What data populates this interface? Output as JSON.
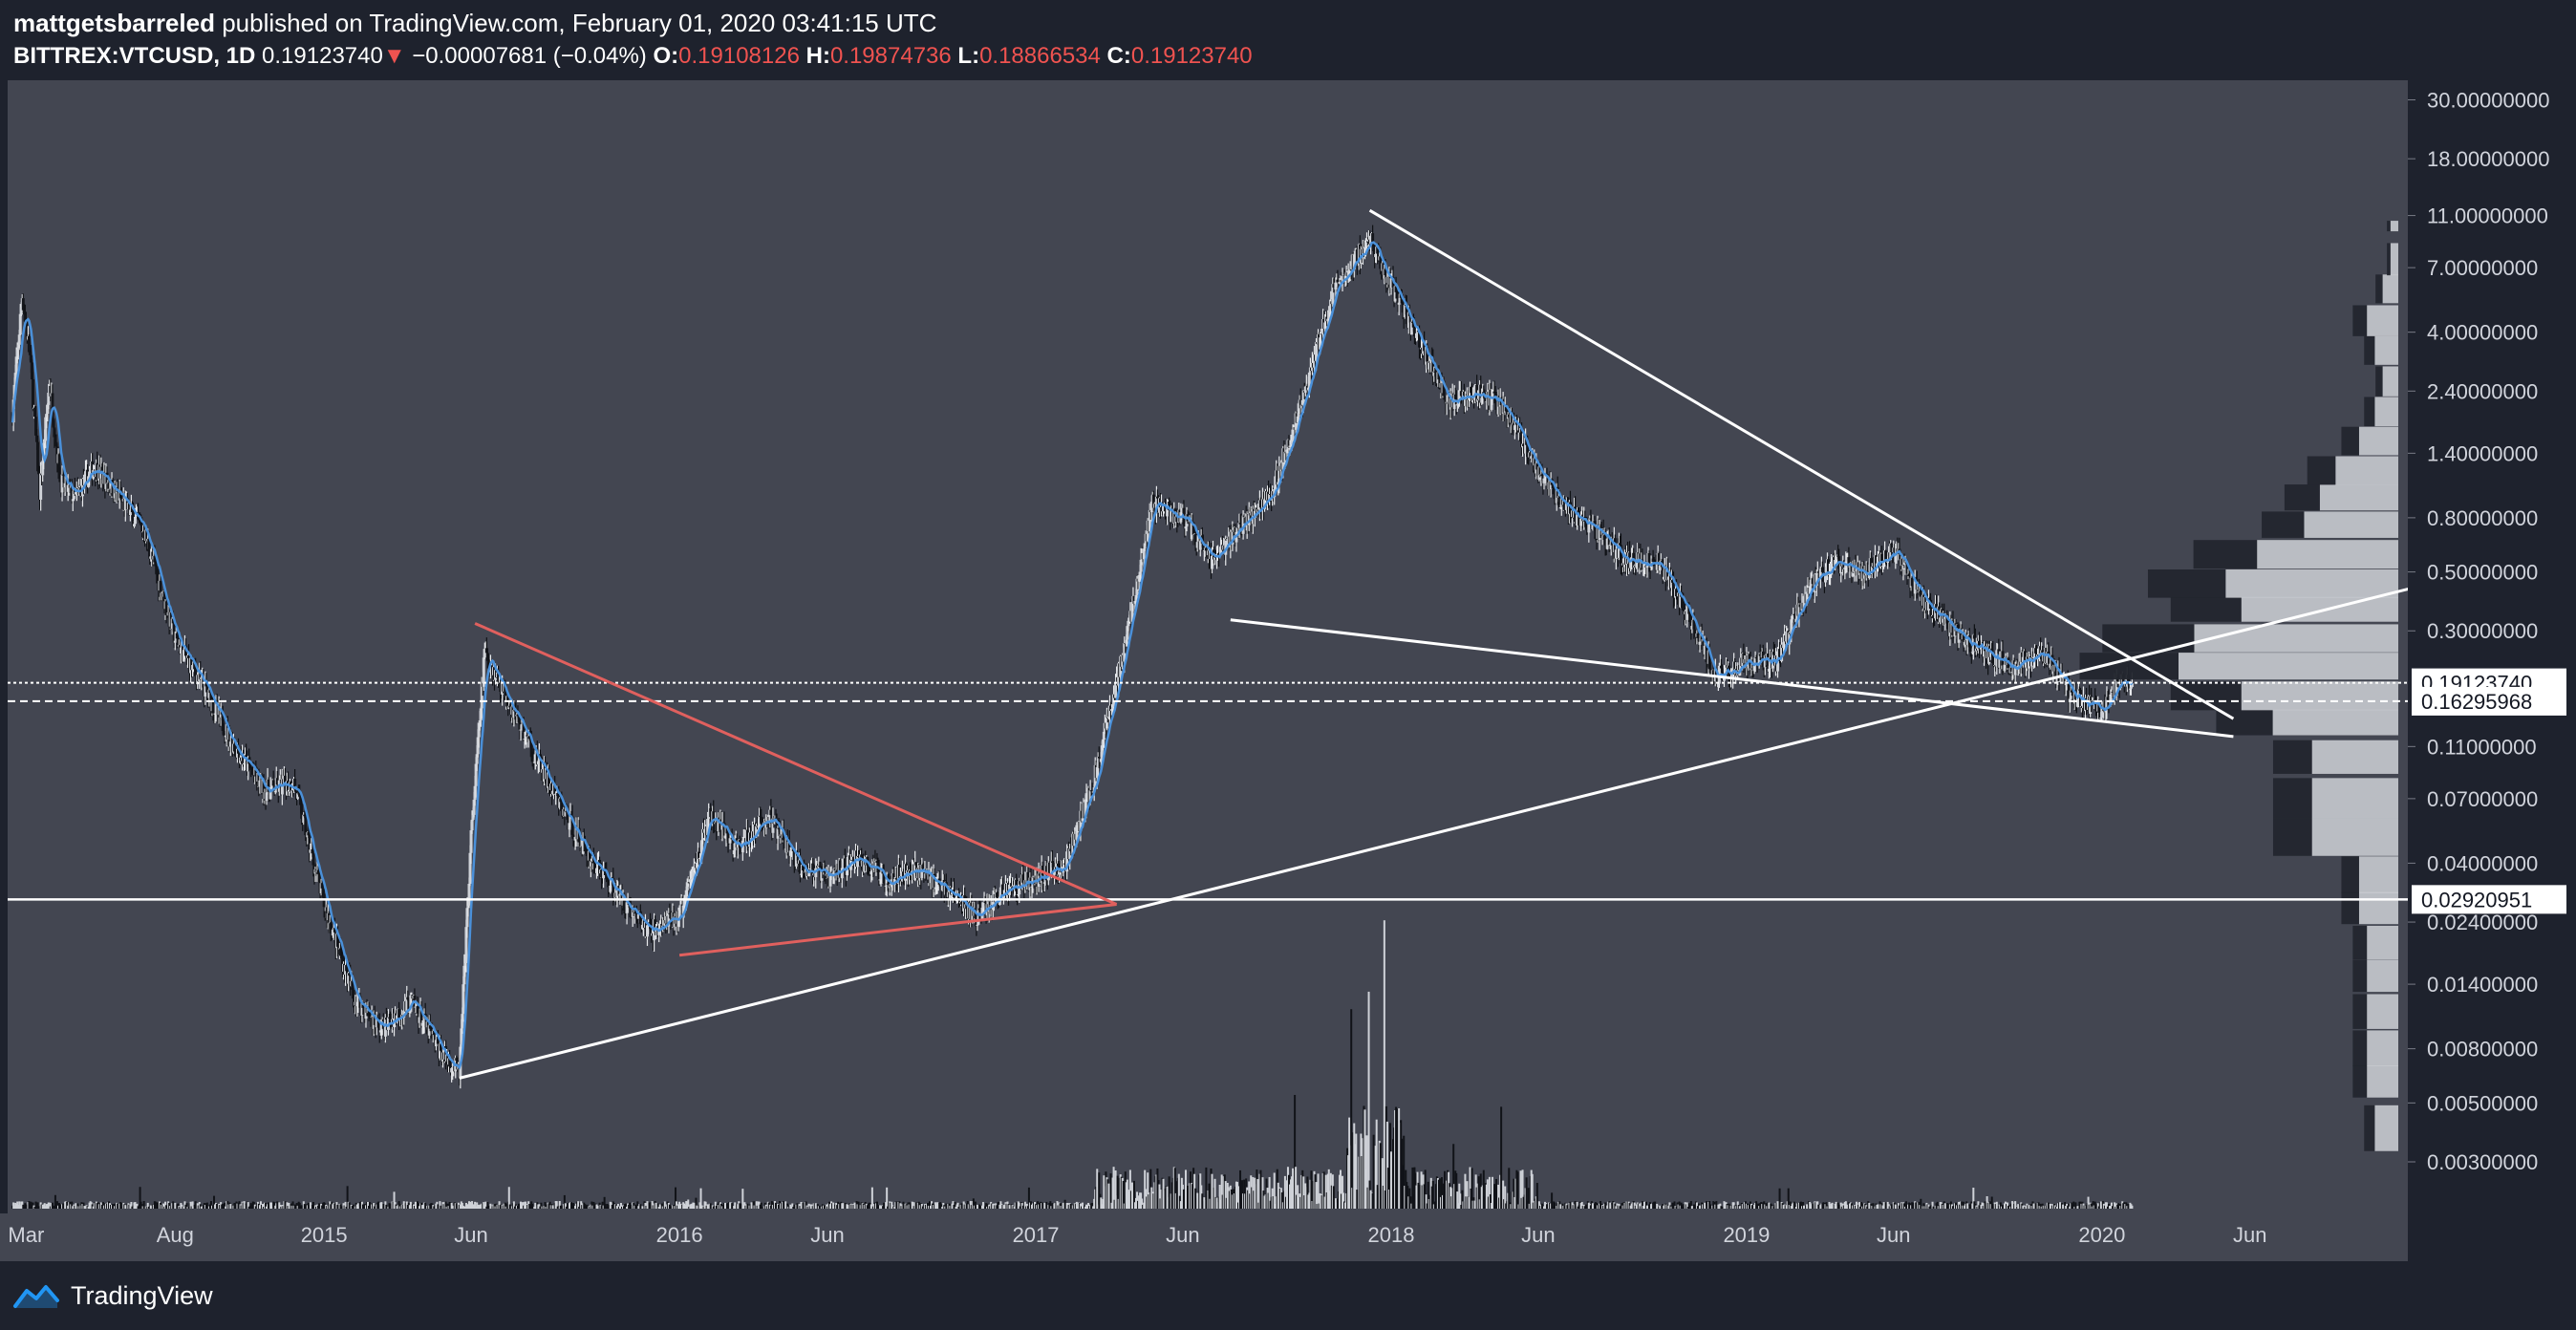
{
  "header": {
    "username": "mattgetsbarreled",
    "published_text": "published on TradingView.com, February 01, 2020 03:41:15 UTC",
    "symbol": "BITTREX:VTCUSD, 1D",
    "last": "0.19123740",
    "change": "−0.00007681 (−0.04%)",
    "o_label": "O:",
    "o_value": "0.19108126",
    "h_label": "H:",
    "h_value": "0.19874736",
    "l_label": "L:",
    "l_value": "0.18866534",
    "c_label": "C:",
    "c_value": "0.19123740",
    "down_color": "#ef5350"
  },
  "footer": {
    "brand": "TradingView",
    "logo_icon": "tradingview-logo-icon"
  },
  "colors": {
    "background": "#1e222d",
    "plot_background": "#434651",
    "trendline_white": "#ffffff",
    "trendline_red": "#e0605e",
    "moving_average": "#4a90d9",
    "candles": "#cfd2d8"
  },
  "chart_data": {
    "type": "candlestick",
    "y_scale": "log",
    "ylim": [
      0.0025,
      33
    ],
    "y_ticks": [
      {
        "value": 30,
        "label": "30.00000000"
      },
      {
        "value": 18,
        "label": "18.00000000"
      },
      {
        "value": 11,
        "label": "11.00000000"
      },
      {
        "value": 7,
        "label": "7.00000000"
      },
      {
        "value": 4,
        "label": "4.00000000"
      },
      {
        "value": 2.4,
        "label": "2.40000000"
      },
      {
        "value": 1.4,
        "label": "1.40000000"
      },
      {
        "value": 0.8,
        "label": "0.80000000"
      },
      {
        "value": 0.5,
        "label": "0.50000000"
      },
      {
        "value": 0.3,
        "label": "0.30000000"
      },
      {
        "value": 0.11,
        "label": "0.11000000"
      },
      {
        "value": 0.07,
        "label": "0.07000000"
      },
      {
        "value": 0.04,
        "label": "0.04000000"
      },
      {
        "value": 0.024,
        "label": "0.02400000"
      },
      {
        "value": 0.014,
        "label": "0.01400000"
      },
      {
        "value": 0.008,
        "label": "0.00800000"
      },
      {
        "value": 0.005,
        "label": "0.00500000"
      },
      {
        "value": 0.003,
        "label": "0.00300000"
      }
    ],
    "x_ticks": [
      {
        "date": "2014-03-01",
        "label": "Mar"
      },
      {
        "date": "2014-08-01",
        "label": "Aug"
      },
      {
        "date": "2015-01-01",
        "label": "2015"
      },
      {
        "date": "2015-06-01",
        "label": "Jun"
      },
      {
        "date": "2016-01-01",
        "label": "2016"
      },
      {
        "date": "2016-06-01",
        "label": "Jun"
      },
      {
        "date": "2017-01-01",
        "label": "2017"
      },
      {
        "date": "2017-06-01",
        "label": "Jun"
      },
      {
        "date": "2018-01-01",
        "label": "2018"
      },
      {
        "date": "2018-06-01",
        "label": "Jun"
      },
      {
        "date": "2019-01-01",
        "label": "2019"
      },
      {
        "date": "2019-06-01",
        "label": "Jun"
      },
      {
        "date": "2020-01-01",
        "label": "2020"
      },
      {
        "date": "2020-06-01",
        "label": "Jun"
      }
    ],
    "xlim": [
      "2014-02-10",
      "2020-11-20"
    ],
    "price_labels": [
      {
        "value": 0.1912374,
        "label": "0.19123740",
        "style": "dotted"
      },
      {
        "value": 0.16295968,
        "label": "0.16295968",
        "style": "dashed"
      },
      {
        "value": 0.02920951,
        "label": "0.02920951",
        "style": "solid"
      }
    ],
    "price_path": [
      [
        "2014-02-15",
        2.0
      ],
      [
        "2014-02-25",
        5.5
      ],
      [
        "2014-03-05",
        3.2
      ],
      [
        "2014-03-15",
        1.0
      ],
      [
        "2014-03-25",
        2.6
      ],
      [
        "2014-04-05",
        1.1
      ],
      [
        "2014-04-20",
        0.95
      ],
      [
        "2014-05-10",
        1.25
      ],
      [
        "2014-06-01",
        1.0
      ],
      [
        "2014-07-01",
        0.7
      ],
      [
        "2014-08-01",
        0.28
      ],
      [
        "2014-09-01",
        0.18
      ],
      [
        "2014-10-01",
        0.11
      ],
      [
        "2014-11-01",
        0.075
      ],
      [
        "2014-12-01",
        0.08
      ],
      [
        "2015-01-01",
        0.028
      ],
      [
        "2015-02-01",
        0.0125
      ],
      [
        "2015-03-01",
        0.0095
      ],
      [
        "2015-04-01",
        0.012
      ],
      [
        "2015-05-01",
        0.0078
      ],
      [
        "2015-05-20",
        0.0065
      ],
      [
        "2015-06-01",
        0.05
      ],
      [
        "2015-06-15",
        0.25
      ],
      [
        "2015-07-01",
        0.19
      ],
      [
        "2015-08-01",
        0.11
      ],
      [
        "2015-09-01",
        0.065
      ],
      [
        "2015-10-01",
        0.042
      ],
      [
        "2015-11-01",
        0.03
      ],
      [
        "2015-12-01",
        0.022
      ],
      [
        "2016-01-01",
        0.025
      ],
      [
        "2016-02-01",
        0.06
      ],
      [
        "2016-03-01",
        0.045
      ],
      [
        "2016-04-01",
        0.06
      ],
      [
        "2016-05-01",
        0.04
      ],
      [
        "2016-06-01",
        0.035
      ],
      [
        "2016-07-01",
        0.042
      ],
      [
        "2016-08-01",
        0.035
      ],
      [
        "2016-09-01",
        0.038
      ],
      [
        "2016-10-01",
        0.032
      ],
      [
        "2016-11-01",
        0.025
      ],
      [
        "2016-12-01",
        0.032
      ],
      [
        "2017-01-01",
        0.035
      ],
      [
        "2017-02-01",
        0.04
      ],
      [
        "2017-03-01",
        0.08
      ],
      [
        "2017-04-01",
        0.25
      ],
      [
        "2017-05-01",
        0.9
      ],
      [
        "2017-06-01",
        0.8
      ],
      [
        "2017-07-01",
        0.55
      ],
      [
        "2017-08-01",
        0.75
      ],
      [
        "2017-09-01",
        1.0
      ],
      [
        "2017-10-01",
        2.2
      ],
      [
        "2017-11-01",
        5.5
      ],
      [
        "2017-12-10",
        9.0
      ],
      [
        "2018-01-01",
        6.0
      ],
      [
        "2018-02-01",
        3.5
      ],
      [
        "2018-03-01",
        2.2
      ],
      [
        "2018-04-01",
        2.4
      ],
      [
        "2018-05-01",
        2.0
      ],
      [
        "2018-06-01",
        1.2
      ],
      [
        "2018-07-01",
        0.85
      ],
      [
        "2018-08-01",
        0.7
      ],
      [
        "2018-09-01",
        0.55
      ],
      [
        "2018-10-01",
        0.55
      ],
      [
        "2018-11-01",
        0.35
      ],
      [
        "2018-12-01",
        0.2
      ],
      [
        "2019-01-01",
        0.23
      ],
      [
        "2019-02-01",
        0.23
      ],
      [
        "2019-03-01",
        0.4
      ],
      [
        "2019-04-01",
        0.55
      ],
      [
        "2019-05-01",
        0.5
      ],
      [
        "2019-06-01",
        0.6
      ],
      [
        "2019-07-01",
        0.4
      ],
      [
        "2019-08-01",
        0.3
      ],
      [
        "2019-09-01",
        0.25
      ],
      [
        "2019-10-01",
        0.22
      ],
      [
        "2019-11-01",
        0.25
      ],
      [
        "2019-12-01",
        0.17
      ],
      [
        "2020-01-01",
        0.15
      ],
      [
        "2020-01-20",
        0.2
      ],
      [
        "2020-02-01",
        0.19
      ]
    ],
    "trendlines": [
      {
        "color": "white",
        "from": [
          "2015-05-20",
          0.0062
        ],
        "to": [
          "2020-11-20",
          0.44
        ]
      },
      {
        "color": "white",
        "from": [
          "2017-12-10",
          11.5
        ],
        "to": [
          "2020-05-15",
          0.14
        ]
      },
      {
        "color": "white",
        "from": [
          "2017-07-20",
          0.33
        ],
        "to": [
          "2020-05-15",
          0.12
        ]
      },
      {
        "color": "red",
        "from": [
          "2015-06-05",
          0.32
        ],
        "to": [
          "2017-03-25",
          0.028
        ]
      },
      {
        "color": "red",
        "from": [
          "2016-01-01",
          0.018
        ],
        "to": [
          "2017-03-25",
          0.028
        ]
      }
    ],
    "volume_profile": [
      {
        "price": 0.004,
        "value": 3
      },
      {
        "price": 0.006,
        "value": 4
      },
      {
        "price": 0.008,
        "value": 4
      },
      {
        "price": 0.011,
        "value": 4
      },
      {
        "price": 0.015,
        "value": 4
      },
      {
        "price": 0.02,
        "value": 4
      },
      {
        "price": 0.027,
        "value": 5
      },
      {
        "price": 0.036,
        "value": 5
      },
      {
        "price": 0.05,
        "value": 11
      },
      {
        "price": 0.07,
        "value": 11
      },
      {
        "price": 0.1,
        "value": 11
      },
      {
        "price": 0.135,
        "value": 16
      },
      {
        "price": 0.17,
        "value": 20
      },
      {
        "price": 0.22,
        "value": 28
      },
      {
        "price": 0.28,
        "value": 26
      },
      {
        "price": 0.36,
        "value": 20
      },
      {
        "price": 0.45,
        "value": 22
      },
      {
        "price": 0.58,
        "value": 18
      },
      {
        "price": 0.75,
        "value": 12
      },
      {
        "price": 0.95,
        "value": 10
      },
      {
        "price": 1.2,
        "value": 8
      },
      {
        "price": 1.55,
        "value": 5
      },
      {
        "price": 2.0,
        "value": 3
      },
      {
        "price": 2.6,
        "value": 2
      },
      {
        "price": 3.4,
        "value": 3
      },
      {
        "price": 4.4,
        "value": 4
      },
      {
        "price": 5.8,
        "value": 2
      },
      {
        "price": 7.5,
        "value": 1
      },
      {
        "price": 10,
        "value": 1
      }
    ]
  }
}
